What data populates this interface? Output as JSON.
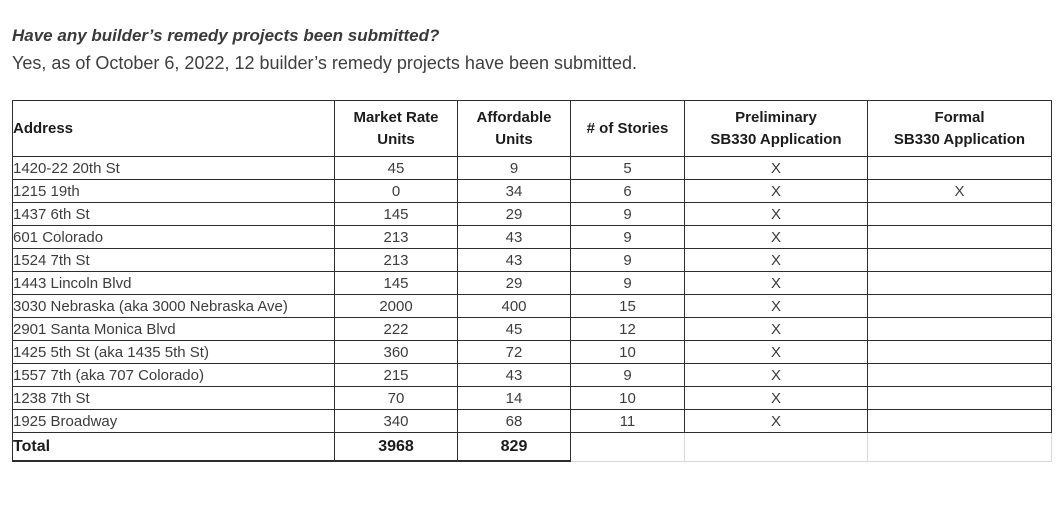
{
  "document": {
    "question": "Have any builder’s remedy projects been submitted?",
    "answer": "Yes, as of October 6, 2022, 12 builder’s remedy projects have been submitted."
  },
  "table": {
    "headers": [
      {
        "key": "address",
        "label": "Address",
        "lines": [
          "Address"
        ]
      },
      {
        "key": "market-rate-units",
        "label": "Market Rate Units",
        "lines": [
          "Market Rate",
          "Units"
        ]
      },
      {
        "key": "affordable-units",
        "label": "Affordable Units",
        "lines": [
          "Affordable",
          "Units"
        ]
      },
      {
        "key": "stories",
        "label": "# of Stories",
        "lines": [
          "# of Stories"
        ]
      },
      {
        "key": "preliminary-sb330",
        "label": "Preliminary SB330 Application",
        "lines": [
          "Preliminary",
          "SB330 Application"
        ]
      },
      {
        "key": "formal-sb330",
        "label": "Formal SB330 Application",
        "lines": [
          "Formal",
          "SB330 Application"
        ]
      }
    ],
    "rows": [
      [
        "1420-22 20th St",
        "45",
        "9",
        "5",
        "X",
        ""
      ],
      [
        "1215 19th",
        "0",
        "34",
        "6",
        "X",
        "X"
      ],
      [
        "1437 6th St",
        "145",
        "29",
        "9",
        "X",
        ""
      ],
      [
        "601 Colorado",
        "213",
        "43",
        "9",
        "X",
        ""
      ],
      [
        "1524 7th St",
        "213",
        "43",
        "9",
        "X",
        ""
      ],
      [
        "1443 Lincoln Blvd",
        "145",
        "29",
        "9",
        "X",
        ""
      ],
      [
        "3030 Nebraska (aka 3000 Nebraska Ave)",
        "2000",
        "400",
        "15",
        "X",
        ""
      ],
      [
        "2901 Santa Monica Blvd",
        "222",
        "45",
        "12",
        "X",
        ""
      ],
      [
        "1425 5th St (aka 1435 5th St)",
        "360",
        "72",
        "10",
        "X",
        ""
      ],
      [
        "1557 7th (aka 707 Colorado)",
        "215",
        "43",
        "9",
        "X",
        ""
      ],
      [
        "1238 7th St",
        "70",
        "14",
        "10",
        "X",
        ""
      ],
      [
        "1925 Broadway",
        "340",
        "68",
        "11",
        "X",
        ""
      ]
    ],
    "total_row": {
      "label": "Total",
      "market_rate_units": "3968",
      "affordable_units": "829"
    }
  },
  "colors": {
    "background": "#ffffff",
    "body_text": "#3f3f3f",
    "table_text": "#3d3d3d",
    "header_text": "#1c1c1c",
    "table_border": "#2e2e2e",
    "light_border": "#d9d9d9"
  }
}
